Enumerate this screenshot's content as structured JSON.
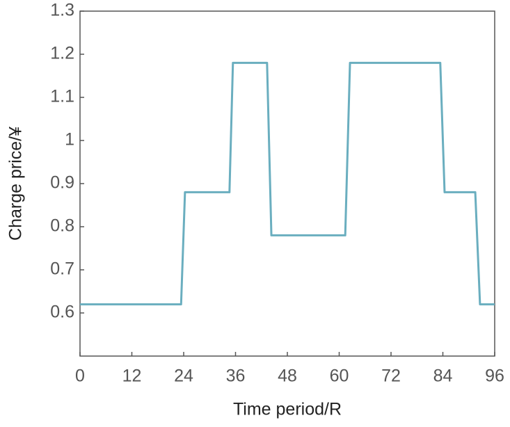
{
  "chart_data": {
    "type": "line",
    "x_label": "Time period/R",
    "y_label": "Charge price/¥",
    "series": [
      {
        "color": "#6aaebf",
        "x": [
          0,
          23.4,
          24.3,
          34.6,
          35.4,
          43.3,
          44.3,
          61.4,
          62.5,
          83.4,
          84.4,
          91.5,
          92.6,
          96
        ],
        "values": [
          0.62,
          0.62,
          0.88,
          0.88,
          1.18,
          1.18,
          0.78,
          0.78,
          1.18,
          1.18,
          0.88,
          0.88,
          0.62,
          0.62
        ]
      }
    ],
    "xlim": [
      0,
      96
    ],
    "xticks": [
      0,
      12,
      24,
      36,
      48,
      60,
      72,
      84,
      96
    ],
    "ylim": [
      0.5,
      1.3
    ],
    "yticks": [
      0.6,
      0.7,
      0.8,
      0.9,
      1,
      1.1,
      1.2,
      1.3
    ]
  }
}
